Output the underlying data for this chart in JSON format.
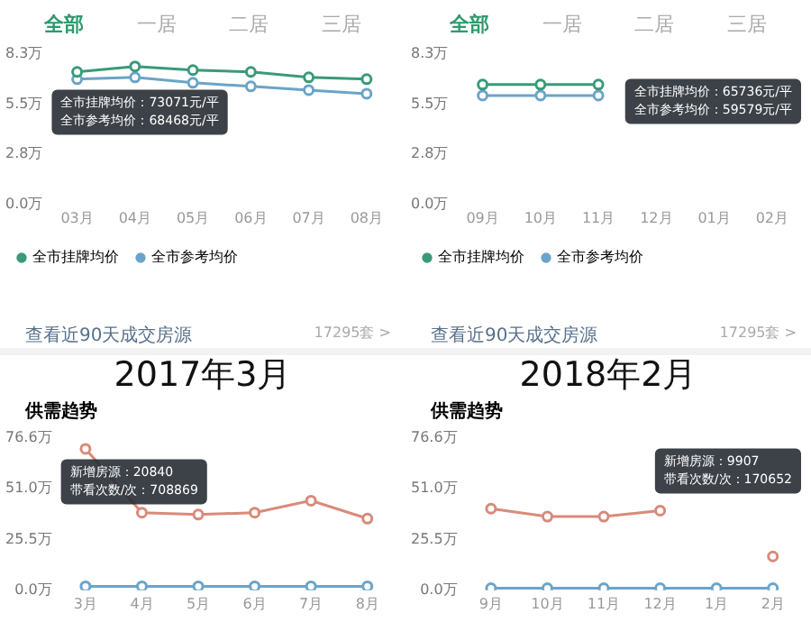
{
  "chart_data": [
    {
      "type": "line",
      "annotations": [
        "全部",
        "一居",
        "二居",
        "三居",
        "全市挂牌均价：73071元/平",
        "全市参考均价：68468元/平"
      ],
      "categories": [
        "03月",
        "04月",
        "05月",
        "06月",
        "07月",
        "08月"
      ],
      "series": [
        {
          "name": "全市挂牌均价",
          "color": "#3a9a78",
          "values": [
            7.3,
            7.6,
            7.4,
            7.3,
            7.0,
            6.9
          ]
        },
        {
          "name": "全市参考均价",
          "color": "#6ba4c8",
          "values": [
            6.9,
            7.0,
            6.7,
            6.5,
            6.3,
            6.1
          ]
        }
      ],
      "ylim": [
        0,
        8.3
      ],
      "yticks": [
        {
          "value": 0,
          "label": "0.0万"
        },
        {
          "value": 2.8,
          "label": "2.8万"
        },
        {
          "value": 5.5,
          "label": "5.5万"
        },
        {
          "value": 8.3,
          "label": "8.3万"
        }
      ],
      "grid": false,
      "legend": "bottom",
      "marker": "circle"
    },
    {
      "type": "line",
      "annotations": [
        "全部",
        "一居",
        "二居",
        "三居",
        "全市挂牌均价：65736元/平",
        "全市参考均价：59579元/平"
      ],
      "categories": [
        "09月",
        "10月",
        "11月",
        "12月",
        "01月",
        "02月"
      ],
      "series": [
        {
          "name": "全市挂牌均价",
          "color": "#3a9a78",
          "values": [
            6.6,
            6.6,
            6.6,
            null,
            null,
            null
          ]
        },
        {
          "name": "全市参考均价",
          "color": "#6ba4c8",
          "values": [
            6.0,
            6.0,
            6.0,
            null,
            null,
            null
          ]
        }
      ],
      "ylim": [
        0,
        8.3
      ],
      "yticks": [
        {
          "value": 0,
          "label": "0.0万"
        },
        {
          "value": 2.8,
          "label": "2.8万"
        },
        {
          "value": 5.5,
          "label": "5.5万"
        },
        {
          "value": 8.3,
          "label": "8.3万"
        }
      ],
      "grid": false,
      "legend": "bottom",
      "marker": "circle"
    },
    {
      "type": "line",
      "title": "供需趋势",
      "annotations": [
        "查看近90天成交房源",
        "17295套 >",
        "2017年3月",
        "新增房源：20840",
        "带看次数/次：708869"
      ],
      "categories": [
        "3月",
        "4月",
        "5月",
        "6月",
        "7月",
        "8月"
      ],
      "series": [
        {
          "color": "#6ba4c8",
          "values": [
            2,
            2,
            2,
            2,
            2,
            2
          ]
        },
        {
          "color": "#d98a7a",
          "values": [
            71,
            39,
            38,
            39,
            45,
            36
          ]
        }
      ],
      "ylim": [
        0,
        76.6
      ],
      "yticks": [
        {
          "value": 0,
          "label": "0.0万"
        },
        {
          "value": 25.5,
          "label": "25.5万"
        },
        {
          "value": 51,
          "label": "51.0万"
        },
        {
          "value": 76.6,
          "label": "76.6万"
        }
      ],
      "grid": false,
      "marker": "circle"
    },
    {
      "type": "line",
      "title": "供需趋势",
      "annotations": [
        "查看近90天成交房源",
        "17295套 >",
        "2018年2月",
        "新增房源：9907",
        "带看次数/次：170652"
      ],
      "categories": [
        "9月",
        "10月",
        "11月",
        "12月",
        "1月",
        "2月"
      ],
      "series": [
        {
          "color": "#6ba4c8",
          "values": [
            1,
            1,
            1,
            1,
            1,
            1
          ]
        },
        {
          "color": "#d98a7a",
          "values": [
            41,
            37,
            37,
            40,
            null,
            17
          ]
        }
      ],
      "ylim": [
        0,
        76.6
      ],
      "yticks": [
        {
          "value": 0,
          "label": "0.0万"
        },
        {
          "value": 25.5,
          "label": "25.5万"
        },
        {
          "value": 51,
          "label": "51.0万"
        },
        {
          "value": 76.6,
          "label": "76.6万"
        }
      ],
      "grid": false,
      "marker": "circle"
    }
  ]
}
